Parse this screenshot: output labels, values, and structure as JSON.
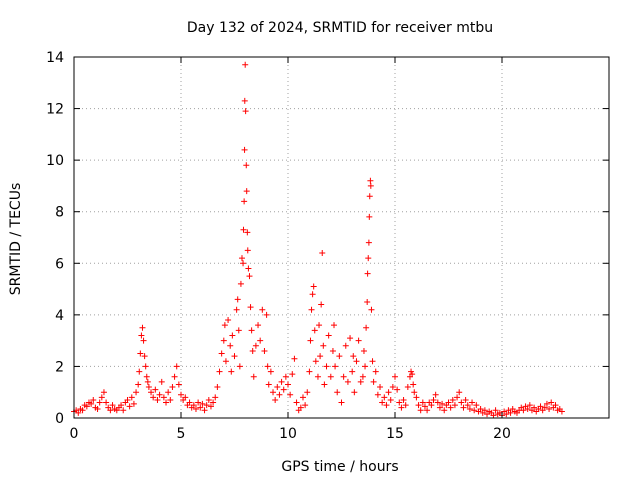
{
  "chart_data": {
    "type": "scatter",
    "title": "Day 132 of 2024, SRMTID for receiver mtbu",
    "xlabel": "GPS time / hours",
    "ylabel": "SRMTID / TECUs",
    "xlim": [
      0,
      25
    ],
    "ylim": [
      0,
      14
    ],
    "xticks": [
      0,
      5,
      10,
      15,
      20
    ],
    "yticks": [
      0,
      2,
      4,
      6,
      8,
      10,
      12,
      14
    ],
    "grid": true,
    "marker": "+",
    "color": "#ff0000",
    "series": [
      {
        "name": "SRMTID",
        "points": [
          [
            0.0,
            0.25
          ],
          [
            0.1,
            0.3
          ],
          [
            0.2,
            0.2
          ],
          [
            0.3,
            0.35
          ],
          [
            0.4,
            0.3
          ],
          [
            0.5,
            0.5
          ],
          [
            0.6,
            0.45
          ],
          [
            0.7,
            0.6
          ],
          [
            0.8,
            0.55
          ],
          [
            0.9,
            0.7
          ],
          [
            1.0,
            0.4
          ],
          [
            1.1,
            0.35
          ],
          [
            1.2,
            0.6
          ],
          [
            1.3,
            0.8
          ],
          [
            1.4,
            1.0
          ],
          [
            1.5,
            0.6
          ],
          [
            1.6,
            0.4
          ],
          [
            1.7,
            0.3
          ],
          [
            1.8,
            0.5
          ],
          [
            1.9,
            0.35
          ],
          [
            2.0,
            0.3
          ],
          [
            2.1,
            0.4
          ],
          [
            2.2,
            0.5
          ],
          [
            2.3,
            0.3
          ],
          [
            2.4,
            0.6
          ],
          [
            2.5,
            0.7
          ],
          [
            2.6,
            0.45
          ],
          [
            2.7,
            0.8
          ],
          [
            2.8,
            0.55
          ],
          [
            2.9,
            1.0
          ],
          [
            3.0,
            1.3
          ],
          [
            3.05,
            1.8
          ],
          [
            3.1,
            2.5
          ],
          [
            3.15,
            3.2
          ],
          [
            3.2,
            3.5
          ],
          [
            3.25,
            3.0
          ],
          [
            3.3,
            2.4
          ],
          [
            3.35,
            2.0
          ],
          [
            3.4,
            1.6
          ],
          [
            3.45,
            1.4
          ],
          [
            3.5,
            1.2
          ],
          [
            3.6,
            1.0
          ],
          [
            3.7,
            0.8
          ],
          [
            3.8,
            1.1
          ],
          [
            3.9,
            0.7
          ],
          [
            4.0,
            0.9
          ],
          [
            4.1,
            1.4
          ],
          [
            4.2,
            0.8
          ],
          [
            4.3,
            0.6
          ],
          [
            4.4,
            1.0
          ],
          [
            4.5,
            0.7
          ],
          [
            4.6,
            1.2
          ],
          [
            4.7,
            1.6
          ],
          [
            4.8,
            2.0
          ],
          [
            4.9,
            1.3
          ],
          [
            5.0,
            0.9
          ],
          [
            5.1,
            0.7
          ],
          [
            5.2,
            0.8
          ],
          [
            5.3,
            0.5
          ],
          [
            5.4,
            0.6
          ],
          [
            5.5,
            0.4
          ],
          [
            5.6,
            0.5
          ],
          [
            5.7,
            0.35
          ],
          [
            5.8,
            0.6
          ],
          [
            5.9,
            0.4
          ],
          [
            6.0,
            0.55
          ],
          [
            6.1,
            0.3
          ],
          [
            6.2,
            0.5
          ],
          [
            6.3,
            0.7
          ],
          [
            6.4,
            0.45
          ],
          [
            6.5,
            0.6
          ],
          [
            6.6,
            0.8
          ],
          [
            6.7,
            1.2
          ],
          [
            6.8,
            1.8
          ],
          [
            6.9,
            2.5
          ],
          [
            7.0,
            3.0
          ],
          [
            7.05,
            3.6
          ],
          [
            7.1,
            2.2
          ],
          [
            7.2,
            3.8
          ],
          [
            7.3,
            2.8
          ],
          [
            7.35,
            1.8
          ],
          [
            7.4,
            3.2
          ],
          [
            7.5,
            2.4
          ],
          [
            7.6,
            4.2
          ],
          [
            7.65,
            4.6
          ],
          [
            7.7,
            3.4
          ],
          [
            7.75,
            2.0
          ],
          [
            7.8,
            5.2
          ],
          [
            7.85,
            6.2
          ],
          [
            7.9,
            6.0
          ],
          [
            7.92,
            7.3
          ],
          [
            7.95,
            8.4
          ],
          [
            7.97,
            10.4
          ],
          [
            7.98,
            12.3
          ],
          [
            8.0,
            13.7
          ],
          [
            8.02,
            11.9
          ],
          [
            8.05,
            9.8
          ],
          [
            8.07,
            8.8
          ],
          [
            8.1,
            7.2
          ],
          [
            8.12,
            6.5
          ],
          [
            8.15,
            5.8
          ],
          [
            8.2,
            5.5
          ],
          [
            8.25,
            4.3
          ],
          [
            8.3,
            3.4
          ],
          [
            8.35,
            2.6
          ],
          [
            8.4,
            1.6
          ],
          [
            8.5,
            2.8
          ],
          [
            8.6,
            3.6
          ],
          [
            8.7,
            3.0
          ],
          [
            8.8,
            4.2
          ],
          [
            8.9,
            2.6
          ],
          [
            9.0,
            4.0
          ],
          [
            9.05,
            2.0
          ],
          [
            9.1,
            1.3
          ],
          [
            9.2,
            1.8
          ],
          [
            9.3,
            1.0
          ],
          [
            9.4,
            0.7
          ],
          [
            9.5,
            1.2
          ],
          [
            9.6,
            0.9
          ],
          [
            9.7,
            1.4
          ],
          [
            9.8,
            1.1
          ],
          [
            9.9,
            1.6
          ],
          [
            10.0,
            1.3
          ],
          [
            10.1,
            0.9
          ],
          [
            10.2,
            1.7
          ],
          [
            10.3,
            2.3
          ],
          [
            10.4,
            0.6
          ],
          [
            10.5,
            0.3
          ],
          [
            10.6,
            0.4
          ],
          [
            10.7,
            0.8
          ],
          [
            10.8,
            0.5
          ],
          [
            10.9,
            1.0
          ],
          [
            11.0,
            1.8
          ],
          [
            11.05,
            3.0
          ],
          [
            11.1,
            4.2
          ],
          [
            11.15,
            4.8
          ],
          [
            11.2,
            5.1
          ],
          [
            11.25,
            3.4
          ],
          [
            11.3,
            2.2
          ],
          [
            11.4,
            1.6
          ],
          [
            11.45,
            3.6
          ],
          [
            11.5,
            2.4
          ],
          [
            11.55,
            4.4
          ],
          [
            11.6,
            6.4
          ],
          [
            11.65,
            2.8
          ],
          [
            11.7,
            1.3
          ],
          [
            11.8,
            2.0
          ],
          [
            11.9,
            3.2
          ],
          [
            12.0,
            1.6
          ],
          [
            12.1,
            2.6
          ],
          [
            12.15,
            3.6
          ],
          [
            12.2,
            2.0
          ],
          [
            12.3,
            1.0
          ],
          [
            12.4,
            2.4
          ],
          [
            12.5,
            0.6
          ],
          [
            12.6,
            1.6
          ],
          [
            12.7,
            2.8
          ],
          [
            12.8,
            1.4
          ],
          [
            12.9,
            3.1
          ],
          [
            13.0,
            1.8
          ],
          [
            13.05,
            2.4
          ],
          [
            13.1,
            1.0
          ],
          [
            13.2,
            2.2
          ],
          [
            13.3,
            3.0
          ],
          [
            13.4,
            1.4
          ],
          [
            13.5,
            1.6
          ],
          [
            13.55,
            2.6
          ],
          [
            13.6,
            2.0
          ],
          [
            13.65,
            3.5
          ],
          [
            13.7,
            4.5
          ],
          [
            13.72,
            5.6
          ],
          [
            13.75,
            6.2
          ],
          [
            13.78,
            6.8
          ],
          [
            13.8,
            7.8
          ],
          [
            13.82,
            8.6
          ],
          [
            13.85,
            9.2
          ],
          [
            13.87,
            9.0
          ],
          [
            13.9,
            4.2
          ],
          [
            13.95,
            2.2
          ],
          [
            14.0,
            1.4
          ],
          [
            14.1,
            1.8
          ],
          [
            14.2,
            0.9
          ],
          [
            14.3,
            1.2
          ],
          [
            14.4,
            0.6
          ],
          [
            14.5,
            0.8
          ],
          [
            14.6,
            0.5
          ],
          [
            14.7,
            1.0
          ],
          [
            14.8,
            0.7
          ],
          [
            14.9,
            1.2
          ],
          [
            15.0,
            1.6
          ],
          [
            15.1,
            1.1
          ],
          [
            15.2,
            0.6
          ],
          [
            15.3,
            0.4
          ],
          [
            15.4,
            0.7
          ],
          [
            15.5,
            0.5
          ],
          [
            15.6,
            1.2
          ],
          [
            15.7,
            1.6
          ],
          [
            15.75,
            1.8
          ],
          [
            15.8,
            1.7
          ],
          [
            15.85,
            1.3
          ],
          [
            15.9,
            1.0
          ],
          [
            16.0,
            0.8
          ],
          [
            16.1,
            0.5
          ],
          [
            16.2,
            0.3
          ],
          [
            16.3,
            0.6
          ],
          [
            16.4,
            0.45
          ],
          [
            16.5,
            0.3
          ],
          [
            16.6,
            0.6
          ],
          [
            16.7,
            0.5
          ],
          [
            16.8,
            0.7
          ],
          [
            16.9,
            0.9
          ],
          [
            17.0,
            0.6
          ],
          [
            17.1,
            0.4
          ],
          [
            17.2,
            0.55
          ],
          [
            17.3,
            0.3
          ],
          [
            17.4,
            0.5
          ],
          [
            17.5,
            0.6
          ],
          [
            17.6,
            0.4
          ],
          [
            17.7,
            0.7
          ],
          [
            17.8,
            0.5
          ],
          [
            17.9,
            0.8
          ],
          [
            18.0,
            1.0
          ],
          [
            18.1,
            0.6
          ],
          [
            18.2,
            0.4
          ],
          [
            18.3,
            0.7
          ],
          [
            18.4,
            0.5
          ],
          [
            18.5,
            0.35
          ],
          [
            18.6,
            0.6
          ],
          [
            18.7,
            0.3
          ],
          [
            18.8,
            0.5
          ],
          [
            18.9,
            0.25
          ],
          [
            19.0,
            0.35
          ],
          [
            19.1,
            0.2
          ],
          [
            19.2,
            0.3
          ],
          [
            19.3,
            0.15
          ],
          [
            19.4,
            0.25
          ],
          [
            19.5,
            0.2
          ],
          [
            19.6,
            0.1
          ],
          [
            19.7,
            0.3
          ],
          [
            19.8,
            0.15
          ],
          [
            19.9,
            0.2
          ],
          [
            20.0,
            0.1
          ],
          [
            20.1,
            0.25
          ],
          [
            20.2,
            0.15
          ],
          [
            20.3,
            0.3
          ],
          [
            20.4,
            0.2
          ],
          [
            20.5,
            0.35
          ],
          [
            20.6,
            0.25
          ],
          [
            20.7,
            0.2
          ],
          [
            20.8,
            0.3
          ],
          [
            20.9,
            0.4
          ],
          [
            21.0,
            0.3
          ],
          [
            21.1,
            0.45
          ],
          [
            21.2,
            0.35
          ],
          [
            21.3,
            0.5
          ],
          [
            21.4,
            0.3
          ],
          [
            21.5,
            0.4
          ],
          [
            21.6,
            0.25
          ],
          [
            21.7,
            0.35
          ],
          [
            21.8,
            0.45
          ],
          [
            21.9,
            0.3
          ],
          [
            22.0,
            0.4
          ],
          [
            22.1,
            0.55
          ],
          [
            22.2,
            0.35
          ],
          [
            22.3,
            0.6
          ],
          [
            22.4,
            0.4
          ],
          [
            22.5,
            0.5
          ],
          [
            22.6,
            0.3
          ],
          [
            22.7,
            0.35
          ],
          [
            22.8,
            0.25
          ]
        ]
      }
    ]
  }
}
